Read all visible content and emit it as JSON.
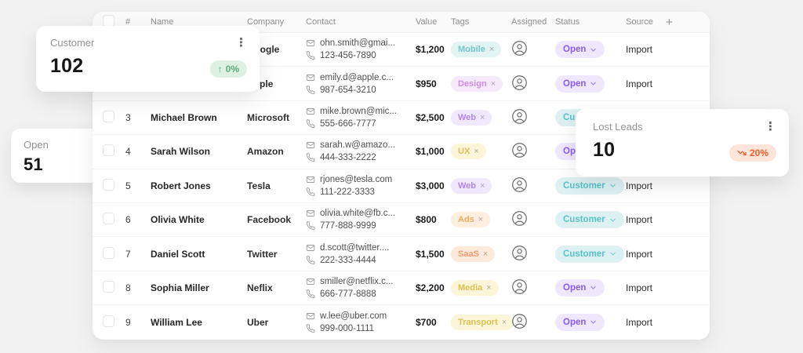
{
  "cards": {
    "customer": {
      "title": "Customer",
      "value": "102",
      "trend": {
        "label": "0%",
        "direction": "up",
        "bg": "#def0e2",
        "text": "#57b276"
      }
    },
    "open": {
      "title": "Open",
      "value": "51"
    },
    "lost": {
      "title": "Lost Leads",
      "value": "10",
      "trend": {
        "label": "20%",
        "direction": "down",
        "bg": "#fde5d9",
        "text": "#f15e2c"
      }
    }
  },
  "table": {
    "headers": {
      "num": "#",
      "name": "Name",
      "company": "Company",
      "contact": "Contact",
      "value": "Value",
      "tags": "Tags",
      "assigned": "Assigned",
      "status": "Status",
      "source": "Source",
      "add": "+"
    },
    "tag_colors": {
      "Mobile": {
        "bg": "#e2f3f4",
        "text": "#74c6cb"
      },
      "Design": {
        "bg": "#f6e9fb",
        "text": "#cb8ce0"
      },
      "Web": {
        "bg": "#f0e8fd",
        "text": "#b286ef"
      },
      "UX": {
        "bg": "#fcf5d8",
        "text": "#ddc052"
      },
      "Ads": {
        "bg": "#fdeedd",
        "text": "#f0ab62"
      },
      "SaaS": {
        "bg": "#fdeada",
        "text": "#f49d74"
      },
      "Media": {
        "bg": "#fcf5d8",
        "text": "#ddc052"
      },
      "Transport": {
        "bg": "#fcf5d8",
        "text": "#ddc052"
      }
    },
    "status_colors": {
      "Open": {
        "bg": "#eee7fd",
        "text": "#8b5cf6"
      },
      "Customer": {
        "bg": "#def1f2",
        "text": "#56c2c9"
      }
    },
    "rows": [
      {
        "num": "",
        "name": "",
        "company": "Google",
        "email": "ohn.smith@gmai...",
        "phone": "123-456-7890",
        "value": "$1,200",
        "tag": "Mobile",
        "status": "Open",
        "source": "Import"
      },
      {
        "num": "",
        "name": "",
        "company": "Apple",
        "email": "emily.d@apple.c...",
        "phone": "987-654-3210",
        "value": "$950",
        "tag": "Design",
        "status": "Open",
        "source": "Import"
      },
      {
        "num": "3",
        "name": "Michael Brown",
        "company": "Microsoft",
        "email": "mike.brown@mic...",
        "phone": "555-666-7777",
        "value": "$2,500",
        "tag": "Web",
        "status": "Customer",
        "source": "Import"
      },
      {
        "num": "4",
        "name": "Sarah Wilson",
        "company": "Amazon",
        "email": "sarah.w@amazo...",
        "phone": "444-333-2222",
        "value": "$1,000",
        "tag": "UX",
        "status": "Open",
        "source": "Import"
      },
      {
        "num": "5",
        "name": "Robert Jones",
        "company": "Tesla",
        "email": "rjones@tesla.com",
        "phone": "111-222-3333",
        "value": "$3,000",
        "tag": "Web",
        "status": "Customer",
        "source": "Import"
      },
      {
        "num": "6",
        "name": "Olivia White",
        "company": "Facebook",
        "email": "olivia.white@fb.c...",
        "phone": "777-888-9999",
        "value": "$800",
        "tag": "Ads",
        "status": "Customer",
        "source": "Import"
      },
      {
        "num": "7",
        "name": "Daniel Scott",
        "company": "Twitter",
        "email": "d.scott@twitter....",
        "phone": "222-333-4444",
        "value": "$1,500",
        "tag": "SaaS",
        "status": "Customer",
        "source": "Import"
      },
      {
        "num": "8",
        "name": "Sophia Miller",
        "company": "Neflix",
        "email": "smiller@netflix.c...",
        "phone": "666-777-8888",
        "value": "$2,200",
        "tag": "Media",
        "status": "Open",
        "source": "Import"
      },
      {
        "num": "9",
        "name": "William Lee",
        "company": "Uber",
        "email": "w.lee@uber.com",
        "phone": "999-000-1111",
        "value": "$700",
        "tag": "Transport",
        "status": "Open",
        "source": "Import"
      }
    ]
  }
}
